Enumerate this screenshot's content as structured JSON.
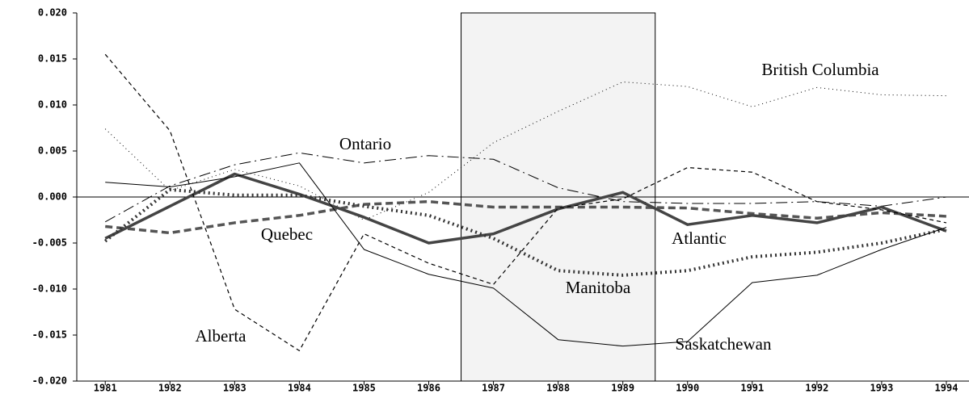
{
  "chart_data": {
    "type": "line",
    "x": [
      1981,
      1982,
      1983,
      1984,
      1985,
      1986,
      1987,
      1988,
      1989,
      1990,
      1991,
      1992,
      1993,
      1994
    ],
    "xlim": [
      1980.56,
      1994.35
    ],
    "xticks": [
      1981,
      1982,
      1983,
      1984,
      1985,
      1986,
      1987,
      1988,
      1989,
      1990,
      1991,
      1992,
      1993,
      1994
    ],
    "ylim": [
      -0.02,
      0.02
    ],
    "yticks": [
      {
        "value": -0.02,
        "label": "-0.020"
      },
      {
        "value": -0.015,
        "label": "-0.015"
      },
      {
        "value": -0.01,
        "label": "-0.010"
      },
      {
        "value": -0.005,
        "label": "-0.005"
      },
      {
        "value": 0,
        "label": "0.000"
      },
      {
        "value": 0.005,
        "label": "0.005"
      },
      {
        "value": 0.01,
        "label": "0.010"
      },
      {
        "value": 0.015,
        "label": "0.015"
      },
      {
        "value": 0.02,
        "label": "0.020"
      }
    ],
    "shaded_region": [
      1986.5,
      1989.5
    ],
    "zero_line": true,
    "series": [
      {
        "name": "British Columbia",
        "color": "#000000",
        "dash": "dotted",
        "values": [
          0.0074,
          0.0007,
          0.003,
          0.0012,
          -0.0025,
          0.0005,
          0.0059,
          0.0093,
          0.0125,
          0.012,
          0.0098,
          0.0119,
          0.0111,
          0.011
        ]
      },
      {
        "name": "Ontario",
        "color": "#000000",
        "dash": "dashdot",
        "values": [
          -0.0027,
          0.0012,
          0.0035,
          0.0048,
          0.0037,
          0.0045,
          0.0041,
          0.001,
          -0.0005,
          -0.0007,
          -0.0007,
          -0.0005,
          -0.001,
          0.0
        ]
      },
      {
        "name": "Quebec",
        "color": "#555555",
        "dash": "thickdashed",
        "values": [
          -0.0032,
          -0.0039,
          -0.0028,
          -0.002,
          -0.0008,
          -0.0005,
          -0.0011,
          -0.0011,
          -0.0011,
          -0.0012,
          -0.0018,
          -0.0023,
          -0.0017,
          -0.0021
        ]
      },
      {
        "name": "Atlantic",
        "color": "#444444",
        "dash": "thicksolid",
        "values": [
          -0.0045,
          -0.001,
          0.0025,
          0.0003,
          -0.0022,
          -0.005,
          -0.004,
          -0.0013,
          0.0005,
          -0.003,
          -0.002,
          -0.0028,
          -0.0011,
          -0.0037
        ]
      },
      {
        "name": "Manitoba",
        "color": "#333333",
        "dash": "thickdotted",
        "values": [
          -0.0048,
          0.0008,
          0.0002,
          0.0002,
          -0.001,
          -0.002,
          -0.0045,
          -0.008,
          -0.0085,
          -0.008,
          -0.0065,
          -0.006,
          -0.005,
          -0.0035
        ]
      },
      {
        "name": "Alberta",
        "color": "#000000",
        "dash": "dashed",
        "values": [
          0.0155,
          0.0072,
          -0.0122,
          -0.0167,
          -0.004,
          -0.0072,
          -0.0095,
          -0.0012,
          -0.0002,
          0.0032,
          0.0027,
          -0.0005,
          -0.0014,
          -0.0028
        ]
      },
      {
        "name": "Saskatchewan",
        "color": "#000000",
        "dash": "solid",
        "values": [
          0.0016,
          0.0011,
          0.0022,
          0.0037,
          -0.0057,
          -0.0084,
          -0.0099,
          -0.0155,
          -0.0162,
          -0.0157,
          -0.0093,
          -0.0085,
          -0.0057,
          -0.0033
        ]
      }
    ]
  }
}
